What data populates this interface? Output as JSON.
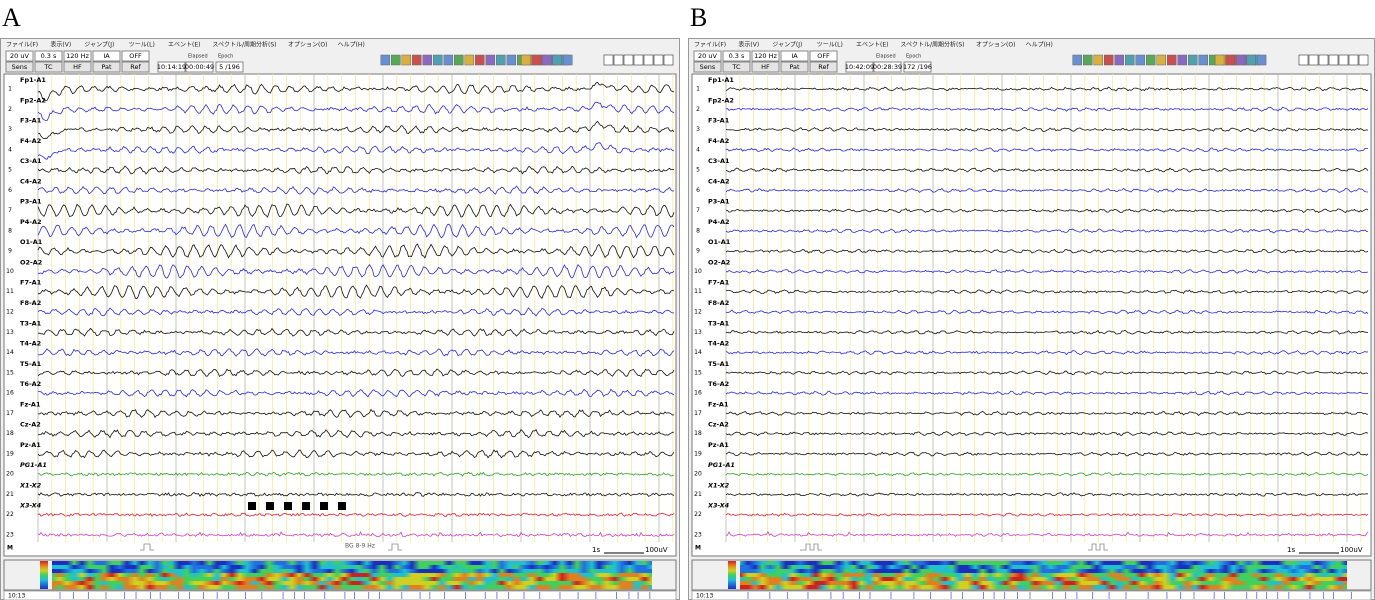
{
  "panels": [
    {
      "label": "A",
      "menu": [
        "ファイル(F)",
        "表示(V)",
        "ジャンプ(J)",
        "ツール(L)",
        "エベント(E)",
        "スペクトル/周期分析(S)",
        "オプション(O)",
        "ヘルプ(H)"
      ],
      "toolbar": {
        "top": [
          "20 uV",
          "0.3 s",
          "120 Hz",
          "IA",
          "OFF"
        ],
        "bottom": [
          "Sens",
          "TC",
          "HF",
          "Pat",
          "Ref"
        ],
        "elapsed_caption": "Elapsed",
        "epoch_caption": "Epoch",
        "clock": "10:14:19",
        "elapsed": "00:00:49",
        "epoch": "5 /196"
      },
      "channels": [
        {
          "number": 1,
          "label": "Fp1-A1"
        },
        {
          "number": 2,
          "label": "Fp2-A2"
        },
        {
          "number": 3,
          "label": "F3-A1"
        },
        {
          "number": 4,
          "label": "F4-A2"
        },
        {
          "number": 5,
          "label": "C3-A1"
        },
        {
          "number": 6,
          "label": "C4-A2"
        },
        {
          "number": 7,
          "label": "P3-A1"
        },
        {
          "number": 8,
          "label": "P4-A2"
        },
        {
          "number": 9,
          "label": "O1-A1"
        },
        {
          "number": 10,
          "label": "O2-A2"
        },
        {
          "number": 11,
          "label": "F7-A1"
        },
        {
          "number": 12,
          "label": "F8-A2"
        },
        {
          "number": 13,
          "label": "T3-A1"
        },
        {
          "number": 14,
          "label": "T4-A2"
        },
        {
          "number": 15,
          "label": "T5-A1"
        },
        {
          "number": 16,
          "label": "T6-A2"
        },
        {
          "number": 17,
          "label": "Fz-A1"
        },
        {
          "number": 18,
          "label": "Cz-A2"
        },
        {
          "number": 19,
          "label": "Pz-A1"
        },
        {
          "number": 20,
          "label": "PG1-A1"
        },
        {
          "number": 21,
          "label": "X1-X2"
        },
        {
          "number": 22,
          "label": "X3-X4"
        },
        {
          "number": 23
        }
      ],
      "marker_row": "M",
      "annotation": "BG 8-9 Hz",
      "scale": {
        "time": "1s",
        "amplitude": "100uV"
      },
      "footer_time": "10:13"
    },
    {
      "label": "B",
      "menu": [
        "ファイル(F)",
        "表示(V)",
        "ジャンプ(J)",
        "ツール(L)",
        "エベント(E)",
        "スペクトル/周期分析(S)",
        "オプション(O)",
        "ヘルプ(H)"
      ],
      "toolbar": {
        "top": [
          "20 uV",
          "0.3 s",
          "120 Hz",
          "IA",
          "OFF"
        ],
        "bottom": [
          "Sens",
          "TC",
          "HF",
          "Pat",
          "Ref"
        ],
        "elapsed_caption": "Elapsed",
        "epoch_caption": "Epoch",
        "clock": "10:42:09",
        "elapsed": "00:28:39",
        "epoch": "172 /196"
      },
      "channels": [
        {
          "number": 1,
          "label": "Fp1-A1"
        },
        {
          "number": 2,
          "label": "Fp2-A2"
        },
        {
          "number": 3,
          "label": "F3-A1"
        },
        {
          "number": 4,
          "label": "F4-A2"
        },
        {
          "number": 5,
          "label": "C3-A1"
        },
        {
          "number": 6,
          "label": "C4-A2"
        },
        {
          "number": 7,
          "label": "P3-A1"
        },
        {
          "number": 8,
          "label": "P4-A2"
        },
        {
          "number": 9,
          "label": "O1-A1"
        },
        {
          "number": 10,
          "label": "O2-A2"
        },
        {
          "number": 11,
          "label": "F7-A1"
        },
        {
          "number": 12,
          "label": "F8-A2"
        },
        {
          "number": 13,
          "label": "T3-A1"
        },
        {
          "number": 14,
          "label": "T4-A2"
        },
        {
          "number": 15,
          "label": "T5-A1"
        },
        {
          "number": 16,
          "label": "T6-A2"
        },
        {
          "number": 17,
          "label": "Fz-A1"
        },
        {
          "number": 18,
          "label": "Cz-A2"
        },
        {
          "number": 19,
          "label": "Pz-A1"
        },
        {
          "number": 20,
          "label": "PG1-A1"
        },
        {
          "number": 21,
          "label": "X1-X2"
        },
        {
          "number": 22,
          "label": "X3-X4"
        },
        {
          "number": 23
        }
      ],
      "marker_row": "M",
      "scale": {
        "time": "1s",
        "amplitude": "100uV"
      },
      "footer_time": "10:13"
    }
  ]
}
